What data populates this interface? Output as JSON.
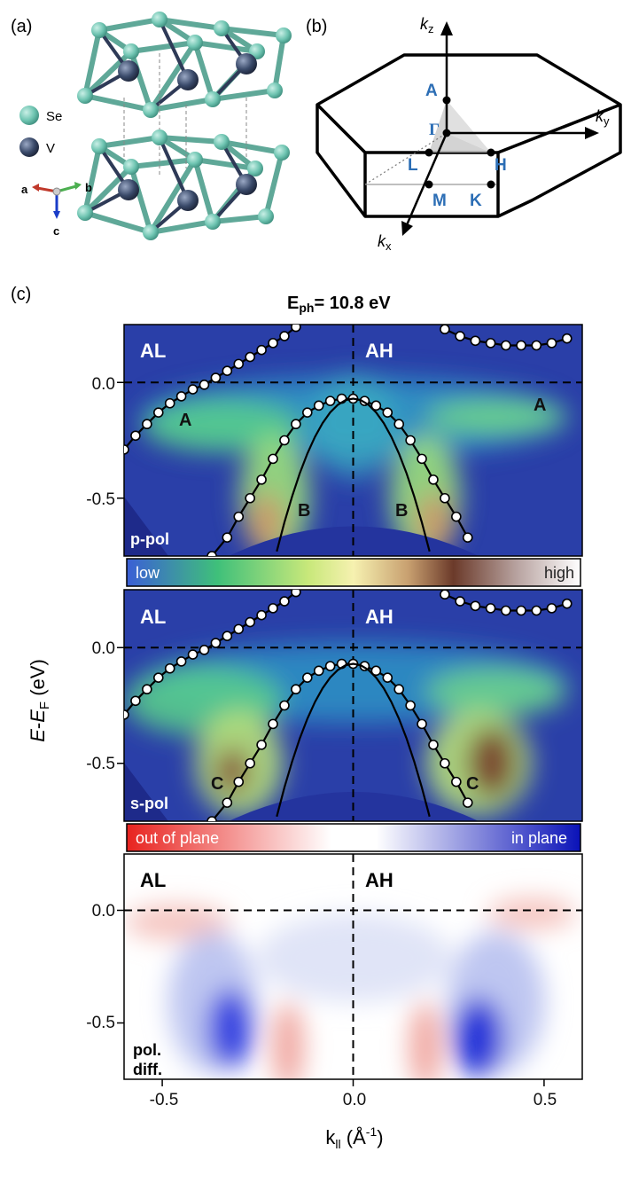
{
  "panels": {
    "a": {
      "label": "(a)",
      "legend": [
        {
          "symbol": "se-atom",
          "label": "Se",
          "color": "#6ec4b1"
        },
        {
          "symbol": "v-atom",
          "label": "V",
          "color": "#3a4a6a"
        }
      ],
      "axes": {
        "a": "a",
        "b": "b",
        "c": "c"
      }
    },
    "b": {
      "label": "(b)",
      "axes": {
        "kz": "k",
        "kz_sub": "z",
        "ky": "k",
        "ky_sub": "y",
        "kx": "k",
        "kx_sub": "x"
      },
      "points": {
        "A": "A",
        "Gamma": "Γ",
        "L": "L",
        "H": "H",
        "M": "M",
        "K": "K"
      }
    },
    "c": {
      "label": "(c)",
      "title_main": "E",
      "title_sub": "ph",
      "title_rest": "= 10.8 eV",
      "ylabel_E": "E",
      "ylabel_dash": "-",
      "ylabel_EF": "E",
      "ylabel_F": "F",
      "ylabel_unit": "(eV)",
      "xlabel_k": "k",
      "xlabel_sub": "ll",
      "xlabel_unit_open": "(Å",
      "xlabel_unit_exp": "-1",
      "xlabel_unit_close": ")"
    }
  },
  "chart_data": [
    {
      "type": "heatmap",
      "name": "p-pol",
      "corner_label": "p-pol",
      "left_label": "AL",
      "right_label": "AH",
      "band_labels": [
        "A",
        "A",
        "B",
        "B"
      ],
      "xlim": [
        -0.6,
        0.6
      ],
      "ylim": [
        -0.75,
        0.25
      ],
      "yticks": [
        0.0,
        -0.5
      ],
      "ytick_labels": [
        "0.0",
        "-0.5"
      ],
      "colorbar": {
        "low": "low",
        "high": "high"
      },
      "dispersions": [
        {
          "band": "A-left",
          "points": [
            [
              -0.6,
              -0.29
            ],
            [
              -0.57,
              -0.23
            ],
            [
              -0.54,
              -0.18
            ],
            [
              -0.51,
              -0.13
            ],
            [
              -0.48,
              -0.09
            ],
            [
              -0.45,
              -0.06
            ],
            [
              -0.42,
              -0.03
            ],
            [
              -0.39,
              -0.01
            ],
            [
              -0.36,
              0.02
            ],
            [
              -0.33,
              0.05
            ],
            [
              -0.3,
              0.08
            ],
            [
              -0.27,
              0.11
            ],
            [
              -0.24,
              0.14
            ],
            [
              -0.21,
              0.17
            ],
            [
              -0.18,
              0.2
            ],
            [
              -0.15,
              0.24
            ]
          ]
        },
        {
          "band": "A-right",
          "points": [
            [
              0.24,
              0.23
            ],
            [
              0.28,
              0.2
            ],
            [
              0.32,
              0.18
            ],
            [
              0.36,
              0.17
            ],
            [
              0.4,
              0.16
            ],
            [
              0.44,
              0.16
            ],
            [
              0.48,
              0.16
            ],
            [
              0.52,
              0.17
            ],
            [
              0.56,
              0.19
            ]
          ]
        },
        {
          "band": "B-outer",
          "points": [
            [
              -0.37,
              -0.75
            ],
            [
              -0.33,
              -0.67
            ],
            [
              -0.3,
              -0.58
            ],
            [
              -0.27,
              -0.5
            ],
            [
              -0.24,
              -0.42
            ],
            [
              -0.21,
              -0.33
            ],
            [
              -0.18,
              -0.25
            ],
            [
              -0.15,
              -0.18
            ],
            [
              -0.12,
              -0.13
            ],
            [
              -0.09,
              -0.1
            ],
            [
              -0.06,
              -0.08
            ],
            [
              -0.03,
              -0.07
            ],
            [
              0.0,
              -0.07
            ],
            [
              0.03,
              -0.08
            ],
            [
              0.06,
              -0.1
            ],
            [
              0.09,
              -0.13
            ],
            [
              0.12,
              -0.18
            ],
            [
              0.15,
              -0.25
            ],
            [
              0.18,
              -0.33
            ],
            [
              0.21,
              -0.42
            ],
            [
              0.24,
              -0.5
            ],
            [
              0.27,
              -0.58
            ],
            [
              0.3,
              -0.67
            ]
          ]
        }
      ]
    },
    {
      "type": "heatmap",
      "name": "s-pol",
      "corner_label": "s-pol",
      "left_label": "AL",
      "right_label": "AH",
      "band_labels": [
        "C",
        "C"
      ],
      "xlim": [
        -0.6,
        0.6
      ],
      "ylim": [
        -0.75,
        0.25
      ],
      "yticks": [
        0.0,
        -0.5
      ],
      "ytick_labels": [
        "0.0",
        "-0.5"
      ],
      "colorbar": {
        "low": "out of plane",
        "high": "in plane"
      }
    },
    {
      "type": "heatmap",
      "name": "pol. diff.",
      "corner_label_line1": "pol.",
      "corner_label_line2": "diff.",
      "left_label": "AL",
      "right_label": "AH",
      "xlim": [
        -0.6,
        0.6
      ],
      "ylim": [
        -0.75,
        0.25
      ],
      "yticks": [
        0.0,
        -0.5
      ],
      "ytick_labels": [
        "0.0",
        "-0.5"
      ],
      "xticks": [
        -0.5,
        0.0,
        0.5
      ],
      "xtick_labels": [
        "-0.5",
        "0.0",
        "0.5"
      ]
    }
  ]
}
